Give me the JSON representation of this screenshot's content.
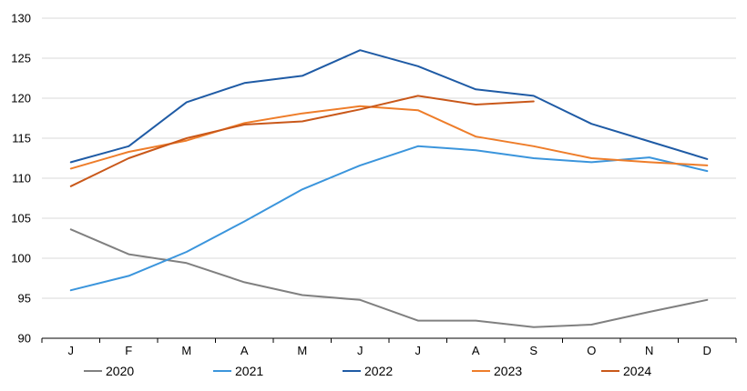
{
  "chart_data": {
    "type": "line",
    "title": "",
    "xlabel": "",
    "ylabel": "",
    "categories": [
      "J",
      "F",
      "M",
      "A",
      "M",
      "J",
      "J",
      "A",
      "S",
      "O",
      "N",
      "D"
    ],
    "ylim": [
      90,
      130
    ],
    "yticks": [
      90,
      95,
      100,
      105,
      110,
      115,
      120,
      125,
      130
    ],
    "grid": "horizontal",
    "legend_position": "bottom",
    "series": [
      {
        "name": "2020",
        "color": "#808080",
        "values": [
          103.6,
          100.5,
          99.4,
          97.0,
          95.4,
          94.8,
          92.2,
          92.2,
          91.4,
          91.7,
          93.3,
          94.8
        ]
      },
      {
        "name": "2021",
        "color": "#3b95dc",
        "values": [
          96.0,
          97.8,
          100.8,
          104.6,
          108.6,
          111.6,
          114.0,
          113.5,
          112.5,
          112.0,
          112.6,
          110.9
        ]
      },
      {
        "name": "2022",
        "color": "#1f5ba5",
        "values": [
          112.0,
          114.0,
          119.5,
          121.9,
          122.8,
          126.0,
          124.0,
          121.1,
          120.3,
          116.8,
          114.6,
          112.4
        ]
      },
      {
        "name": "2023",
        "color": "#ee7d2a",
        "values": [
          111.2,
          113.3,
          114.7,
          116.9,
          118.1,
          119.0,
          118.5,
          115.2,
          114.0,
          112.5,
          112.0,
          111.6
        ]
      },
      {
        "name": "2024",
        "color": "#c9581a",
        "values": [
          109.0,
          112.5,
          115.0,
          116.7,
          117.1,
          118.6,
          120.3,
          119.2,
          119.6,
          null,
          null,
          null
        ]
      }
    ]
  }
}
